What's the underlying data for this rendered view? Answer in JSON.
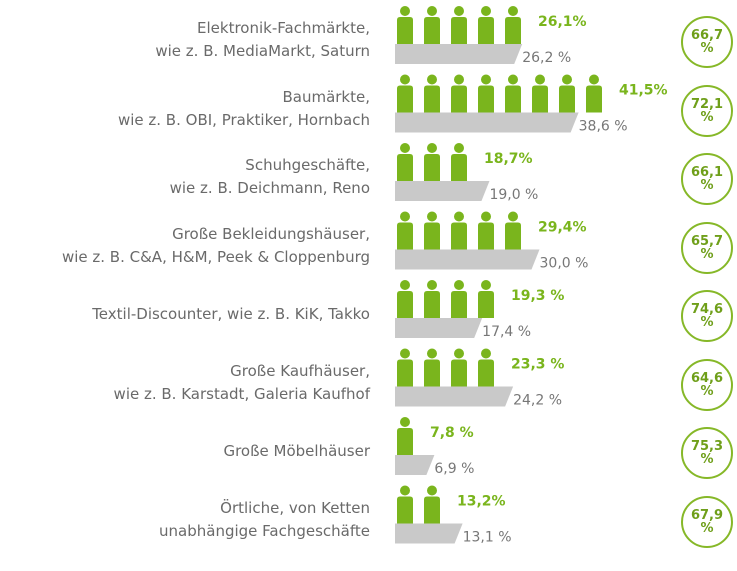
{
  "chart_data": {
    "type": "bar",
    "categories": [
      "Elektronik-Fachmärkte,\nwie z. B. MediaMarkt, Saturn",
      "Baumärkte,\nwie z. B. OBI, Praktiker, Hornbach",
      "Schuhgeschäfte,\nwie z. B. Deichmann, Reno",
      "Große Bekleidungshäuser,\nwie z. B. C&A, H&M, Peek & Cloppenburg",
      "Textil-Discounter, wie z. B. KiK, Takko",
      "Große Kaufhäuser,\nwie z. B. Karstadt, Galeria Kaufhof",
      "Große Möbelhäuser",
      "Örtliche, von Ketten\nunabhängige Fachgeschäfte"
    ],
    "series": [
      {
        "color": "#7ab51d",
        "values": [
          26.1,
          41.5,
          18.7,
          29.4,
          19.3,
          23.3,
          7.8,
          13.2
        ],
        "value_labels": [
          "26,1%",
          "41,5%",
          "18,7%",
          "29,4%",
          "19,3 %",
          "23,3 %",
          "7,8 %",
          "13,2%"
        ]
      },
      {
        "color": "#c9c9c9",
        "values": [
          26.2,
          38.6,
          19.0,
          30.0,
          17.4,
          24.2,
          6.9,
          13.1
        ],
        "value_labels": [
          "26,2 %",
          "38,6 %",
          "19,0 %",
          "30,0 %",
          "17,4 %",
          "24,2 %",
          "6,9 %",
          "13,1 %"
        ]
      },
      {
        "color": "#86b828",
        "values": [
          66.7,
          72.1,
          66.1,
          65.7,
          74.6,
          64.6,
          75.3,
          67.9
        ],
        "value_labels": [
          "66,7 %",
          "72,1 %",
          "66,1 %",
          "65,7 %",
          "74,6 %",
          "64,6 %",
          "75,3 %",
          "67,9 %"
        ]
      }
    ]
  }
}
